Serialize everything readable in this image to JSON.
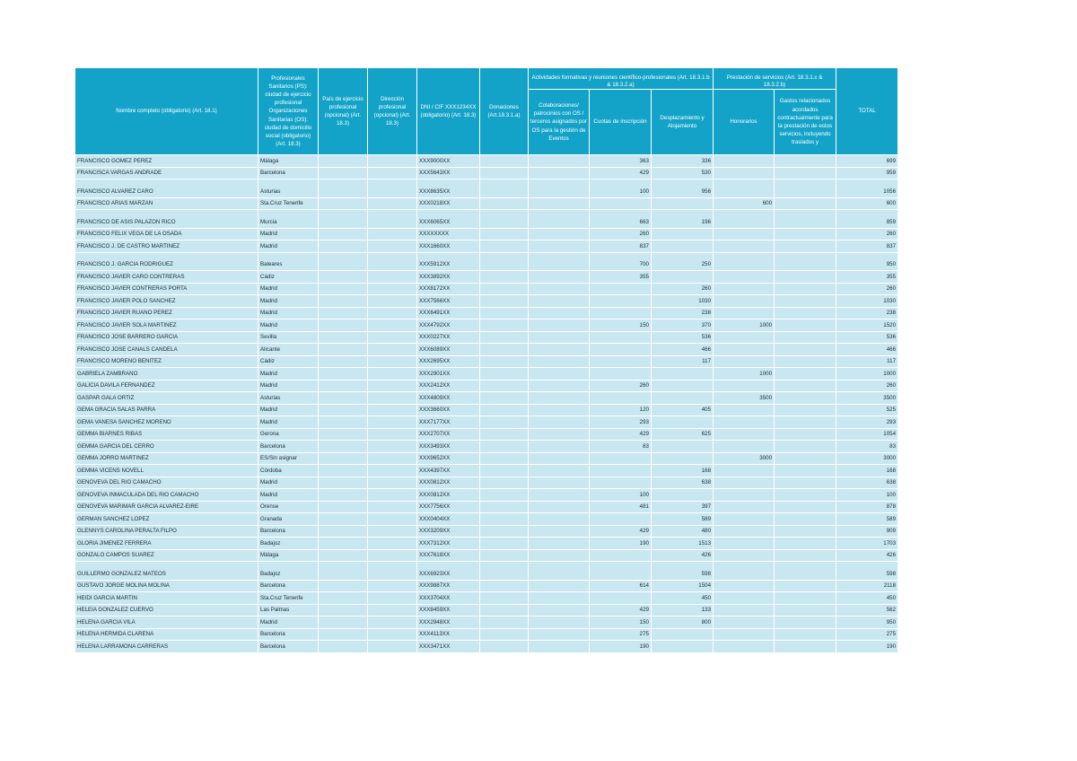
{
  "table": {
    "header": {
      "name": "Nombre completo (obligatorio) (Art. 18.1)",
      "city": "Profesionales Sanitarios (PS): ciudad de ejercicio profesional Organizaciones Sanitarias (OS): ciudad de domicilio social (obligatorio) (Art. 18.3)",
      "country": "País de ejercicio profesional (opcional) (Art. 18.3)",
      "address": "Dirección profesional (opcional) (Art. 18.3)",
      "dni": "DNI / CIF XXX1234XX (obligatorio) (Art. 18.3)",
      "donations": "Donaciones (Art.18.3.1.a)",
      "training_group": "Actividades formativas y reuniones científico-profesionales (Art. 18.3.1.b & 18.3.2.a)",
      "collaborations": "Colaboraciones/ patrocinios con OS / terceros asignados por OS para la gestión de Eventos",
      "fees": "Cuotas de inscripción",
      "travel": "Desplazamiento y Alojamiento",
      "services_group": "Prestación de servicios (Art. 18.3.1.c & 18.3.2.b)",
      "honoraria": "Honorarios",
      "expenses": "Gastos relacionados acordados contractualmente para la prestación de estos servicios, incluyendo traslados y",
      "total": "TOTAL"
    },
    "rows": [
      [
        "FRANCISCO GOMEZ PEREZ",
        "Málaga",
        null,
        null,
        "XXX9000XX",
        null,
        null,
        363,
        336,
        null,
        null,
        699
      ],
      [
        "FRANCISCA VARGAS ANDRADE",
        "Barcelona",
        null,
        null,
        "XXX5643XX",
        null,
        null,
        429,
        530,
        null,
        null,
        959
      ],
      [
        "FRANCISCO ALVAREZ CARO",
        "Asturias",
        null,
        null,
        "XXX8635XX",
        null,
        null,
        100,
        956,
        null,
        null,
        1056
      ],
      [
        "FRANCISCO ARIAS MARZAN",
        "Sta.Cruz Tenerife",
        null,
        null,
        "XXX0218XX",
        null,
        null,
        null,
        null,
        600,
        null,
        600
      ],
      [
        "FRANCISCO DE ASIS PALAZON RICO",
        "Murcia",
        null,
        null,
        "XXX6065XX",
        null,
        null,
        663,
        196,
        null,
        null,
        859
      ],
      [
        "FRANCISCO FELIX VEGA DE LA OSADA",
        "Madrid",
        null,
        null,
        "XXXXXXXX",
        null,
        null,
        260,
        null,
        null,
        null,
        260
      ],
      [
        "FRANCISCO J. DE CASTRO MARTINEZ",
        "Madrid",
        null,
        null,
        "XXX1660XX",
        null,
        null,
        837,
        null,
        null,
        null,
        837
      ],
      [
        "FRANCISCO J. GARCIA RODRIGUEZ",
        "Baleares",
        null,
        null,
        "XXX5912XX",
        null,
        null,
        700,
        250,
        null,
        null,
        950
      ],
      [
        "FRANCISCO JAVIER CARO CONTRERAS",
        "Cádiz",
        null,
        null,
        "XXX3892XX",
        null,
        null,
        355,
        null,
        null,
        null,
        355
      ],
      [
        "FRANCISCO JAVIER CONTRERAS PORTA",
        "Madrid",
        null,
        null,
        "XXX8172XX",
        null,
        null,
        null,
        260,
        null,
        null,
        260
      ],
      [
        "FRANCISCO JAVIER POLO SANCHEZ",
        "Madrid",
        null,
        null,
        "XXX7566XX",
        null,
        null,
        null,
        1030,
        null,
        null,
        1030
      ],
      [
        "FRANCISCO JAVIER RUANO PEREZ",
        "Madrid",
        null,
        null,
        "XXX6491XX",
        null,
        null,
        null,
        238,
        null,
        null,
        238
      ],
      [
        "FRANCISCO JAVIER SOLA MARTINEZ",
        "Madrid",
        null,
        null,
        "XXX4792XX",
        null,
        null,
        150,
        370,
        1000,
        null,
        1520
      ],
      [
        "FRANCISCO JOSE BARRERO GARCIA",
        "Sevilla",
        null,
        null,
        "XXX0227XX",
        null,
        null,
        null,
        536,
        null,
        null,
        536
      ],
      [
        "FRANCISCO JOSE CANALS CANDELA",
        "Alicante",
        null,
        null,
        "XXX6089XX",
        null,
        null,
        null,
        466,
        null,
        null,
        466
      ],
      [
        "FRANCISCO MORENO BENITEZ",
        "Cádiz",
        null,
        null,
        "XXX2695XX",
        null,
        null,
        null,
        117,
        null,
        null,
        117
      ],
      [
        "GABRIELA ZAMBRANO",
        "Madrid",
        null,
        null,
        "XXX2901XX",
        null,
        null,
        null,
        null,
        1000,
        null,
        1000
      ],
      [
        "GALICIA DAVILA FERNANDEZ",
        "Madrid",
        null,
        null,
        "XXX2412XX",
        null,
        null,
        260,
        null,
        null,
        null,
        260
      ],
      [
        "GASPAR GALA ORTIZ",
        "Asturias",
        null,
        null,
        "XXX4809XX",
        null,
        null,
        null,
        null,
        3500,
        null,
        3500
      ],
      [
        "GEMA GRACIA SALAS PARRA",
        "Madrid",
        null,
        null,
        "XXX3660XX",
        null,
        null,
        120,
        405,
        null,
        null,
        525
      ],
      [
        "GEMA VANESA SANCHEZ MORENO",
        "Madrid",
        null,
        null,
        "XXX7177XX",
        null,
        null,
        293,
        null,
        null,
        null,
        293
      ],
      [
        "GEMMA BIARNES RIBAS",
        "Gerona",
        null,
        null,
        "XXX2707XX",
        null,
        null,
        429,
        625,
        null,
        null,
        1054
      ],
      [
        "GEMMA GARCIA DEL CERRO",
        "Barcelona",
        null,
        null,
        "XXX3493XX",
        null,
        null,
        83,
        null,
        null,
        null,
        83
      ],
      [
        "GEMMA JORRO MARTINEZ",
        "ES/Sin asignar",
        null,
        null,
        "XXX9652XX",
        null,
        null,
        null,
        null,
        3000,
        null,
        3000
      ],
      [
        "GEMMA VICENS NOVELL",
        "Córdoba",
        null,
        null,
        "XXX4397XX",
        null,
        null,
        null,
        168,
        null,
        null,
        168
      ],
      [
        "GENOVEVA DEL RIO CAMACHO",
        "Madrid",
        null,
        null,
        "XXX0812XX",
        null,
        null,
        null,
        638,
        null,
        null,
        638
      ],
      [
        "GENOVEVA INMACULADA DEL RIO CAMACHO",
        "Madrid",
        null,
        null,
        "XXX0812XX",
        null,
        null,
        100,
        null,
        null,
        null,
        100
      ],
      [
        "GENOVEVA MARIMAR GARCIA ALVAREZ-EIRE",
        "Orense",
        null,
        null,
        "XXX7756XX",
        null,
        null,
        481,
        397,
        null,
        null,
        878
      ],
      [
        "GERMAN SANCHEZ LOPEZ",
        "Granada",
        null,
        null,
        "XXX0404XX",
        null,
        null,
        null,
        589,
        null,
        null,
        589
      ],
      [
        "GLENNYS CAROLINA PERALTA FILPO",
        "Barcelona",
        null,
        null,
        "XXX3209XX",
        null,
        null,
        429,
        480,
        null,
        null,
        909
      ],
      [
        "GLORIA JIMENEZ FERRERA",
        "Badajoz",
        null,
        null,
        "XXX7312XX",
        null,
        null,
        190,
        1513,
        null,
        null,
        1703
      ],
      [
        "GONZALO CAMPOS SUAREZ",
        "Málaga",
        null,
        null,
        "XXX7618XX",
        null,
        null,
        null,
        426,
        null,
        null,
        426
      ],
      [
        "GUILLERMO GONZALEZ MATEOS",
        "Badajoz",
        null,
        null,
        "XXX6923XX",
        null,
        null,
        null,
        598,
        null,
        null,
        598
      ],
      [
        "GUSTAVO JORGE MOLINA MOLINA",
        "Barcelona",
        null,
        null,
        "XXX9887XX",
        null,
        null,
        614,
        1504,
        null,
        null,
        2118
      ],
      [
        "HEIDI GARCIA MARTIN",
        "Sta.Cruz Tenerife",
        null,
        null,
        "XXX3704XX",
        null,
        null,
        null,
        450,
        null,
        null,
        450
      ],
      [
        "HELEIA GONZALEZ CUERVO",
        "Las Palmas",
        null,
        null,
        "XXX8459XX",
        null,
        null,
        429,
        133,
        null,
        null,
        562
      ],
      [
        "HELENA GARCIA VILA",
        "Madrid",
        null,
        null,
        "XXX2948XX",
        null,
        null,
        150,
        800,
        null,
        null,
        950
      ],
      [
        "HELENA HERMIDA CLARENA",
        "Barcelona",
        null,
        null,
        "XXX4113XX",
        null,
        null,
        275,
        null,
        null,
        null,
        275
      ],
      [
        "HELENA LARRAMONA CARRERAS",
        "Barcelona",
        null,
        null,
        "XXX3471XX",
        null,
        null,
        190,
        null,
        null,
        null,
        190
      ]
    ]
  }
}
